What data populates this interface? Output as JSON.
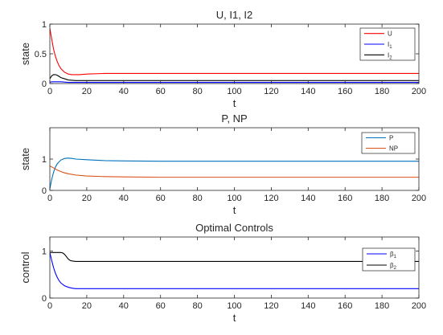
{
  "chart_data": [
    {
      "type": "line",
      "title": "U, I1, I2",
      "xlabel": "t",
      "ylabel": "state",
      "xlim": [
        0,
        200
      ],
      "ylim": [
        0,
        1
      ],
      "xticks": [
        "0",
        "20",
        "40",
        "60",
        "80",
        "100",
        "120",
        "140",
        "160",
        "180",
        "200"
      ],
      "yticks": [
        "0",
        "0.5",
        "1"
      ],
      "grid": false,
      "legend_placement": "top-right",
      "series": [
        {
          "name": "U",
          "legend_main": "U",
          "legend_sub": "",
          "color": "#ff0000",
          "x": [
            0,
            1,
            2,
            3,
            4,
            5,
            6,
            8,
            10,
            12,
            14,
            16,
            20,
            30,
            50,
            100,
            150,
            200
          ],
          "y": [
            0.93,
            0.75,
            0.58,
            0.46,
            0.37,
            0.3,
            0.25,
            0.19,
            0.16,
            0.15,
            0.15,
            0.15,
            0.16,
            0.17,
            0.17,
            0.17,
            0.17,
            0.17
          ]
        },
        {
          "name": "I1",
          "legend_main": "I",
          "legend_sub": "1",
          "color": "#0000ff",
          "x": [
            0,
            1,
            2,
            4,
            6,
            10,
            20,
            50,
            100,
            150,
            200
          ],
          "y": [
            0.02,
            0.03,
            0.03,
            0.03,
            0.03,
            0.02,
            0.02,
            0.02,
            0.02,
            0.02,
            0.02
          ]
        },
        {
          "name": "I2",
          "legend_main": "I",
          "legend_sub": "2",
          "color": "#000000",
          "x": [
            0,
            1,
            2,
            3,
            4,
            5,
            6,
            8,
            10,
            14,
            20,
            30,
            50,
            100,
            150,
            200
          ],
          "y": [
            0.08,
            0.13,
            0.15,
            0.15,
            0.14,
            0.12,
            0.1,
            0.08,
            0.06,
            0.05,
            0.05,
            0.05,
            0.05,
            0.05,
            0.05,
            0.05
          ]
        }
      ]
    },
    {
      "type": "line",
      "title": "P, NP",
      "xlabel": "t",
      "ylabel": "state",
      "xlim": [
        0,
        200
      ],
      "ylim": [
        0,
        2
      ],
      "xticks": [
        "0",
        "20",
        "40",
        "60",
        "80",
        "100",
        "120",
        "140",
        "160",
        "180",
        "200"
      ],
      "yticks": [
        "0",
        "1"
      ],
      "grid": false,
      "legend_placement": "top-right",
      "series": [
        {
          "name": "P",
          "legend_main": "P",
          "legend_sub": "",
          "color": "#0072bd",
          "x": [
            0,
            1,
            2,
            3,
            4,
            6,
            8,
            10,
            12,
            14,
            20,
            30,
            40,
            60,
            80,
            100,
            150,
            200
          ],
          "y": [
            0.05,
            0.35,
            0.58,
            0.74,
            0.85,
            0.97,
            1.02,
            1.03,
            1.02,
            1.0,
            0.98,
            0.95,
            0.94,
            0.93,
            0.93,
            0.93,
            0.93,
            0.93
          ]
        },
        {
          "name": "NP",
          "legend_main": "NP",
          "legend_sub": "",
          "color": "#d95319",
          "x": [
            0,
            2,
            4,
            6,
            8,
            10,
            14,
            20,
            30,
            40,
            60,
            100,
            150,
            200
          ],
          "y": [
            0.78,
            0.72,
            0.65,
            0.6,
            0.56,
            0.53,
            0.49,
            0.46,
            0.44,
            0.43,
            0.42,
            0.42,
            0.42,
            0.42
          ]
        }
      ]
    },
    {
      "type": "line",
      "title": "Optimal Controls",
      "xlabel": "t",
      "ylabel": "control",
      "xlim": [
        0,
        200
      ],
      "ylim": [
        0,
        1.3
      ],
      "xticks": [
        "0",
        "20",
        "40",
        "60",
        "80",
        "100",
        "120",
        "140",
        "160",
        "180",
        "200"
      ],
      "yticks": [
        "0",
        "1"
      ],
      "grid": false,
      "legend_placement": "top-right",
      "series": [
        {
          "name": "β1",
          "legend_main": "β",
          "legend_sub": "1",
          "color": "#0000ff",
          "x": [
            0,
            1,
            2,
            3,
            4,
            5,
            6,
            8,
            10,
            12,
            14,
            16,
            20,
            50,
            100,
            150,
            200
          ],
          "y": [
            0.97,
            0.8,
            0.65,
            0.53,
            0.44,
            0.37,
            0.32,
            0.26,
            0.23,
            0.21,
            0.2,
            0.2,
            0.2,
            0.2,
            0.2,
            0.2,
            0.2
          ]
        },
        {
          "name": "β2",
          "legend_main": "β",
          "legend_sub": "2",
          "color": "#000000",
          "x": [
            0,
            6,
            7,
            8,
            9,
            10,
            11,
            12,
            14,
            20,
            50,
            100,
            150,
            200
          ],
          "y": [
            0.97,
            0.97,
            0.96,
            0.93,
            0.88,
            0.83,
            0.8,
            0.79,
            0.78,
            0.78,
            0.78,
            0.78,
            0.78,
            0.78
          ]
        }
      ]
    }
  ]
}
